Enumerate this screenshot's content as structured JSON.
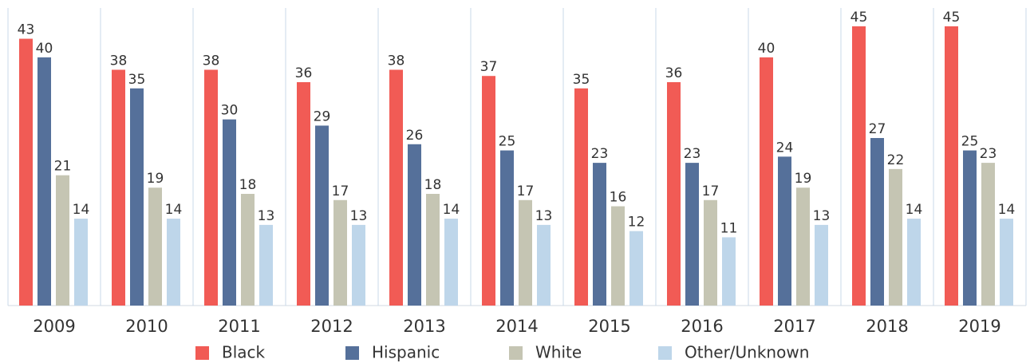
{
  "chart_data": {
    "type": "bar",
    "categories": [
      "2009",
      "2010",
      "2011",
      "2012",
      "2013",
      "2014",
      "2015",
      "2016",
      "2017",
      "2018",
      "2019"
    ],
    "series": [
      {
        "name": "Black",
        "color": "#f15b55",
        "values": [
          43,
          38,
          38,
          36,
          38,
          37,
          35,
          36,
          40,
          45,
          45
        ]
      },
      {
        "name": "Hispanic",
        "color": "#55709a",
        "values": [
          40,
          35,
          30,
          29,
          26,
          25,
          23,
          23,
          24,
          27,
          25
        ]
      },
      {
        "name": "White",
        "color": "#c5c5b3",
        "values": [
          21,
          19,
          18,
          17,
          18,
          17,
          16,
          17,
          19,
          22,
          23
        ]
      },
      {
        "name": "Other/Unknown",
        "color": "#bed6ea",
        "values": [
          14,
          14,
          13,
          13,
          14,
          13,
          12,
          11,
          13,
          14,
          14
        ]
      }
    ]
  }
}
